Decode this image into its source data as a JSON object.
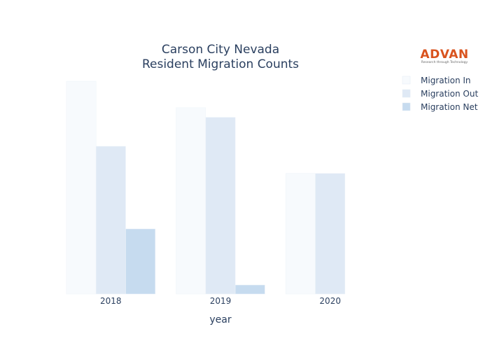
{
  "chart_data": {
    "type": "bar",
    "title": [
      "Carson City Nevada",
      "Resident Migration Counts"
    ],
    "xlabel": "year",
    "ylabel": "",
    "categories": [
      "2018",
      "2019",
      "2020"
    ],
    "series": [
      {
        "name": "Migration In",
        "color": "#f7fafd",
        "values": [
          3300,
          2890,
          1870
        ]
      },
      {
        "name": "Migration Out",
        "color": "#dfe9f5",
        "values": [
          2290,
          2740,
          1870
        ]
      },
      {
        "name": "Migration Net",
        "color": "#c6dbef",
        "values": [
          1010,
          140,
          0
        ]
      }
    ],
    "ylim": [
      0,
      3300
    ],
    "legend_position": "top-right",
    "grid": false,
    "y_tick_labels_shown": false
  },
  "logo": {
    "name": "ADVAN",
    "tagline": "Research through Technology"
  }
}
